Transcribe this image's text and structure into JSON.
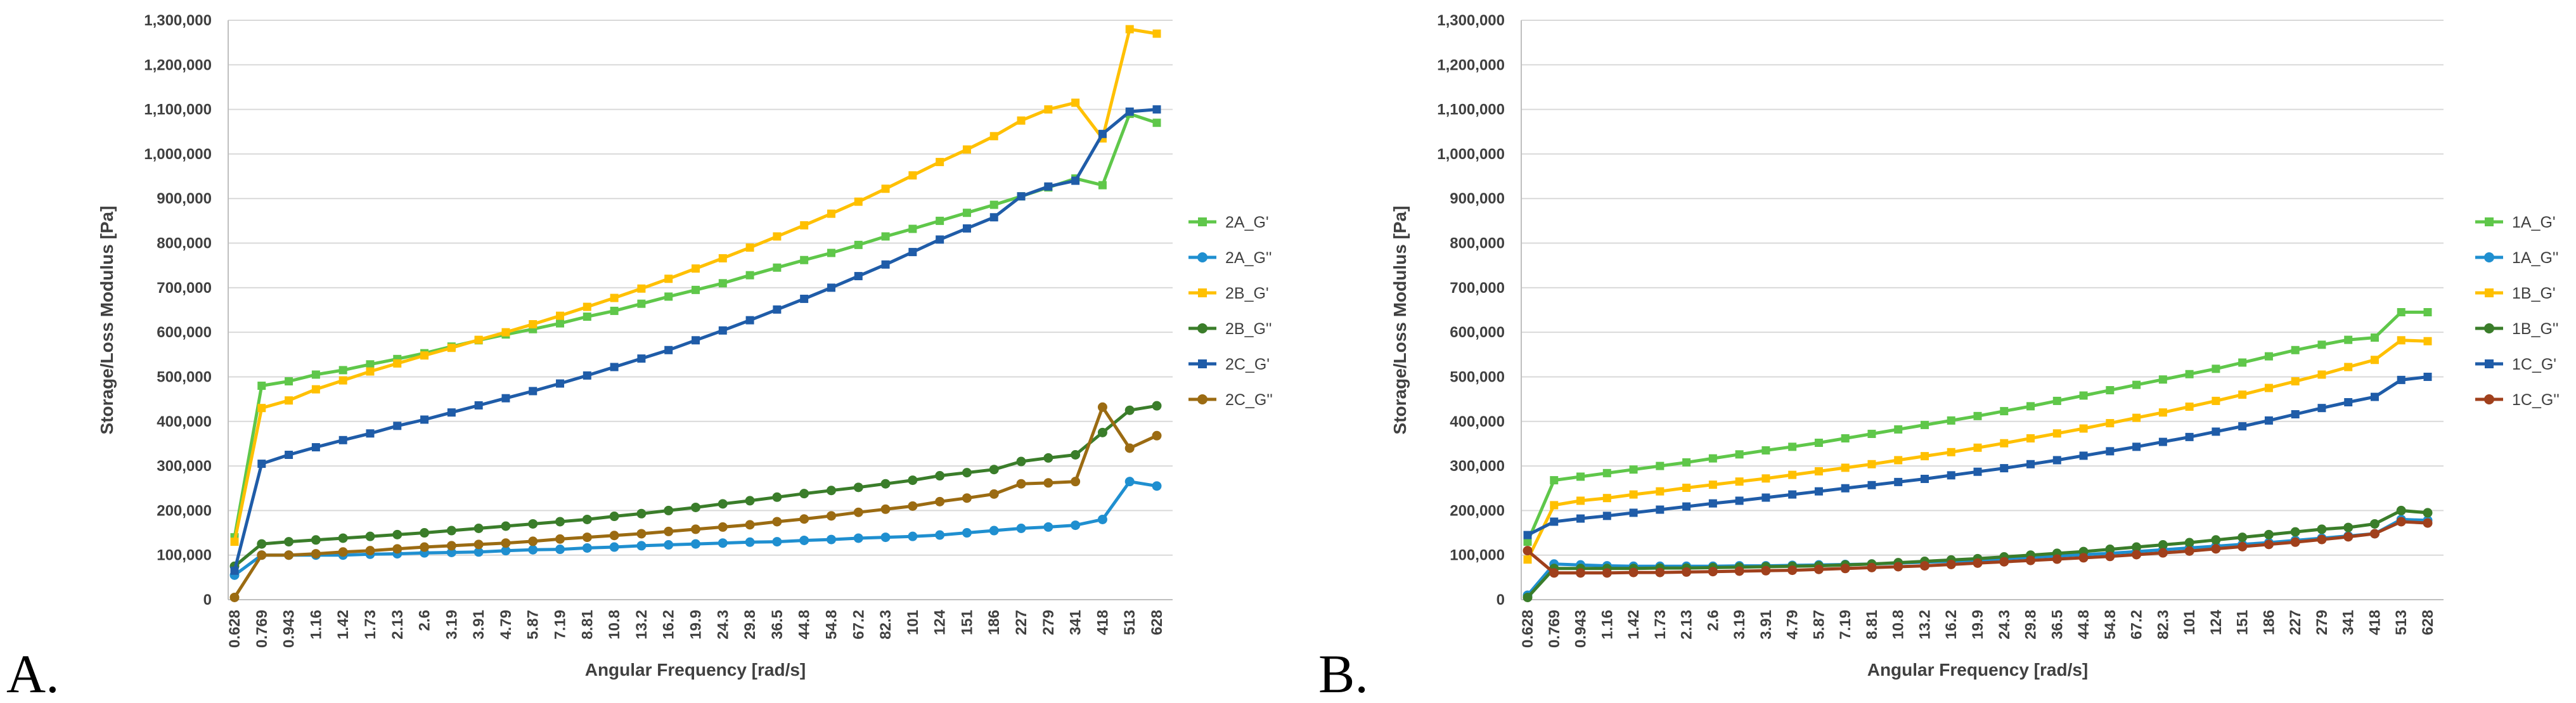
{
  "panels": [
    {
      "letter": "A."
    },
    {
      "letter": "B."
    }
  ],
  "chart_data": [
    {
      "type": "line",
      "title": "",
      "xlabel": "Angular Frequency [rad/s]",
      "ylabel": "Storage/Loss Modulus [Pa]",
      "ylim": [
        0,
        1300000
      ],
      "yticks": [
        0,
        100000,
        200000,
        300000,
        400000,
        500000,
        600000,
        700000,
        800000,
        900000,
        1000000,
        1100000,
        1200000,
        1300000
      ],
      "ytick_labels": [
        "0",
        "100,000",
        "200,000",
        "300,000",
        "400,000",
        "500,000",
        "600,000",
        "700,000",
        "800,000",
        "900,000",
        "1,000,000",
        "1,100,000",
        "1,200,000",
        "1,300,000"
      ],
      "grid": true,
      "legend": "right",
      "categories": [
        "0.628",
        "0.769",
        "0.943",
        "1.16",
        "1.42",
        "1.73",
        "2.13",
        "2.6",
        "3.19",
        "3.91",
        "4.79",
        "5.87",
        "7.19",
        "8.81",
        "10.8",
        "13.2",
        "16.2",
        "19.9",
        "24.3",
        "29.8",
        "36.5",
        "44.8",
        "54.8",
        "67.2",
        "82.3",
        "101",
        "124",
        "151",
        "186",
        "227",
        "279",
        "341",
        "418",
        "513",
        "628"
      ],
      "series": [
        {
          "name": "2A_G'",
          "color": "#5fc74a",
          "marker": "square",
          "values": [
            140000,
            480000,
            490000,
            505000,
            515000,
            528000,
            540000,
            553000,
            568000,
            582000,
            595000,
            607000,
            620000,
            635000,
            648000,
            664000,
            680000,
            695000,
            710000,
            728000,
            745000,
            762000,
            778000,
            796000,
            815000,
            832000,
            850000,
            868000,
            886000,
            905000,
            925000,
            945000,
            930000,
            1090000,
            1070000
          ]
        },
        {
          "name": "2A_G''",
          "color": "#1f8fd0",
          "marker": "circle",
          "values": [
            55000,
            100000,
            100000,
            100000,
            100000,
            102000,
            103000,
            105000,
            106000,
            107000,
            110000,
            112000,
            113000,
            116000,
            118000,
            121000,
            123000,
            125000,
            127000,
            129000,
            130000,
            133000,
            135000,
            138000,
            140000,
            142000,
            145000,
            150000,
            155000,
            160000,
            163000,
            167000,
            180000,
            265000,
            255000
          ]
        },
        {
          "name": "2B_G'",
          "color": "#ffc000",
          "marker": "square",
          "values": [
            130000,
            430000,
            447000,
            472000,
            492000,
            512000,
            530000,
            548000,
            565000,
            583000,
            600000,
            618000,
            637000,
            657000,
            677000,
            698000,
            720000,
            743000,
            766000,
            790000,
            815000,
            840000,
            866000,
            893000,
            922000,
            952000,
            982000,
            1010000,
            1040000,
            1075000,
            1100000,
            1115000,
            1035000,
            1280000,
            1270000
          ]
        },
        {
          "name": "2B_G''",
          "color": "#3a7d2a",
          "marker": "circle",
          "values": [
            75000,
            125000,
            130000,
            134000,
            138000,
            142000,
            146000,
            150000,
            155000,
            160000,
            165000,
            170000,
            175000,
            180000,
            187000,
            193000,
            200000,
            207000,
            215000,
            222000,
            230000,
            238000,
            245000,
            252000,
            260000,
            268000,
            278000,
            285000,
            292000,
            310000,
            318000,
            325000,
            375000,
            425000,
            435000
          ]
        },
        {
          "name": "2C_G'",
          "color": "#1f5ca8",
          "marker": "square",
          "values": [
            65000,
            305000,
            325000,
            342000,
            358000,
            373000,
            390000,
            404000,
            420000,
            436000,
            452000,
            468000,
            485000,
            503000,
            522000,
            541000,
            560000,
            582000,
            604000,
            627000,
            651000,
            675000,
            700000,
            726000,
            752000,
            780000,
            808000,
            833000,
            858000,
            905000,
            927000,
            940000,
            1045000,
            1095000,
            1100000
          ]
        },
        {
          "name": "2C_G''",
          "color": "#9b6b12",
          "marker": "circle",
          "values": [
            5000,
            100000,
            100000,
            103000,
            107000,
            110000,
            114000,
            118000,
            121000,
            124000,
            127000,
            131000,
            136000,
            140000,
            144000,
            148000,
            153000,
            158000,
            163000,
            168000,
            175000,
            181000,
            188000,
            196000,
            203000,
            210000,
            220000,
            228000,
            237000,
            260000,
            262000,
            265000,
            432000,
            340000,
            368000
          ]
        }
      ]
    },
    {
      "type": "line",
      "title": "",
      "xlabel": "Angular Frequency [rad/s]",
      "ylabel": "Storage/Loss Modulus [Pa]",
      "ylim": [
        0,
        1300000
      ],
      "yticks": [
        0,
        100000,
        200000,
        300000,
        400000,
        500000,
        600000,
        700000,
        800000,
        900000,
        1000000,
        1100000,
        1200000,
        1300000
      ],
      "ytick_labels": [
        "0",
        "100,000",
        "200,000",
        "300,000",
        "400,000",
        "500,000",
        "600,000",
        "700,000",
        "800,000",
        "900,000",
        "1,000,000",
        "1,100,000",
        "1,200,000",
        "1,300,000"
      ],
      "grid": true,
      "legend": "right",
      "categories": [
        "0.628",
        "0.769",
        "0.943",
        "1.16",
        "1.42",
        "1.73",
        "2.13",
        "2.6",
        "3.19",
        "3.91",
        "4.79",
        "5.87",
        "7.19",
        "8.81",
        "10.8",
        "13.2",
        "16.2",
        "19.9",
        "24.3",
        "29.8",
        "36.5",
        "44.8",
        "54.8",
        "67.2",
        "82.3",
        "101",
        "124",
        "151",
        "186",
        "227",
        "279",
        "341",
        "418",
        "513",
        "628"
      ],
      "series": [
        {
          "name": "1A_G'",
          "color": "#5fc74a",
          "marker": "square",
          "values": [
            130000,
            268000,
            276000,
            284000,
            292000,
            300000,
            308000,
            317000,
            326000,
            335000,
            343000,
            352000,
            362000,
            372000,
            382000,
            392000,
            402000,
            412000,
            423000,
            434000,
            446000,
            458000,
            470000,
            482000,
            494000,
            506000,
            518000,
            532000,
            546000,
            560000,
            572000,
            583000,
            588000,
            645000,
            645000
          ]
        },
        {
          "name": "1A_G''",
          "color": "#1f8fd0",
          "marker": "circle",
          "values": [
            10000,
            80000,
            78000,
            76000,
            75000,
            75000,
            75000,
            75000,
            76000,
            76000,
            77000,
            78000,
            79000,
            80000,
            82000,
            84000,
            86000,
            88000,
            92000,
            95000,
            98000,
            101000,
            104000,
            108000,
            112000,
            116000,
            120000,
            124000,
            128000,
            133000,
            138000,
            143000,
            148000,
            180000,
            178000
          ]
        },
        {
          "name": "1B_G'",
          "color": "#ffc000",
          "marker": "square",
          "values": [
            90000,
            212000,
            222000,
            228000,
            236000,
            243000,
            251000,
            258000,
            265000,
            272000,
            280000,
            288000,
            296000,
            304000,
            313000,
            322000,
            331000,
            341000,
            351000,
            362000,
            373000,
            384000,
            396000,
            408000,
            420000,
            433000,
            446000,
            460000,
            475000,
            490000,
            505000,
            522000,
            538000,
            582000,
            580000
          ]
        },
        {
          "name": "1B_G''",
          "color": "#3a7d2a",
          "marker": "circle",
          "values": [
            5000,
            70000,
            70000,
            70000,
            70000,
            71000,
            71000,
            72000,
            73000,
            74000,
            75000,
            76000,
            78000,
            80000,
            83000,
            86000,
            89000,
            92000,
            96000,
            100000,
            104000,
            108000,
            113000,
            118000,
            123000,
            128000,
            134000,
            140000,
            146000,
            152000,
            158000,
            162000,
            170000,
            200000,
            195000
          ]
        },
        {
          "name": "1C_G'",
          "color": "#1f5ca8",
          "marker": "square",
          "values": [
            145000,
            175000,
            182000,
            188000,
            195000,
            202000,
            209000,
            216000,
            222000,
            229000,
            236000,
            243000,
            250000,
            257000,
            264000,
            271000,
            279000,
            287000,
            295000,
            304000,
            313000,
            323000,
            333000,
            343000,
            354000,
            365000,
            377000,
            389000,
            402000,
            416000,
            430000,
            443000,
            455000,
            493000,
            500000
          ]
        },
        {
          "name": "1C_G''",
          "color": "#a0401c",
          "marker": "circle",
          "values": [
            110000,
            60000,
            60000,
            60000,
            61000,
            61000,
            62000,
            63000,
            64000,
            65000,
            66000,
            68000,
            70000,
            72000,
            74000,
            76000,
            79000,
            82000,
            85000,
            88000,
            91000,
            94000,
            97000,
            101000,
            105000,
            109000,
            114000,
            119000,
            124000,
            129000,
            135000,
            141000,
            148000,
            175000,
            172000
          ]
        }
      ]
    }
  ]
}
